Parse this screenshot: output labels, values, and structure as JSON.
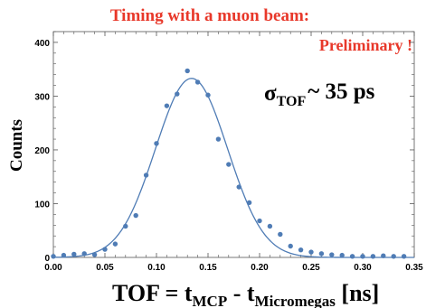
{
  "colors": {
    "red": "#e8382a",
    "blue": "#4f7cb5",
    "axis": "#555555",
    "text": "#000000"
  },
  "chart_data": {
    "type": "scatter",
    "title": "Timing with a muon beam:",
    "annotation": "Preliminary !",
    "sigma_label": {
      "symbol": "σ",
      "sub": "TOF",
      "value": "~ 35 ps"
    },
    "xlabel": {
      "main": "TOF = t",
      "sub1": "MCP",
      "mid": " - t",
      "sub2": "Micromegas",
      "end": " [ns]"
    },
    "ylabel": "Counts",
    "xlim": [
      0.0,
      0.35
    ],
    "ylim": [
      0,
      420
    ],
    "xticks": [
      "0.00",
      "0.05",
      "0.10",
      "0.15",
      "0.20",
      "0.25",
      "0.30",
      "0.35"
    ],
    "yticks": [
      "0",
      "100",
      "200",
      "300",
      "400"
    ],
    "series": [
      {
        "kind": "points",
        "x": [
          0.0,
          0.01,
          0.02,
          0.03,
          0.04,
          0.05,
          0.06,
          0.07,
          0.08,
          0.09,
          0.1,
          0.11,
          0.12,
          0.13,
          0.14,
          0.15,
          0.16,
          0.17,
          0.18,
          0.19,
          0.2,
          0.21,
          0.22,
          0.23,
          0.24,
          0.25,
          0.26,
          0.27,
          0.28,
          0.29,
          0.3,
          0.31,
          0.32,
          0.33,
          0.34
        ],
        "y": [
          2,
          4,
          6,
          7,
          5,
          15,
          25,
          58,
          78,
          153,
          212,
          282,
          304,
          347,
          326,
          302,
          220,
          173,
          131,
          102,
          68,
          58,
          43,
          21,
          14,
          10,
          7,
          5,
          4,
          2,
          2,
          2,
          3,
          2,
          2
        ]
      },
      {
        "kind": "fit",
        "model": "gaussian",
        "amplitude": 333,
        "mean": 0.134,
        "sigma": 0.035
      }
    ],
    "grid": false
  }
}
